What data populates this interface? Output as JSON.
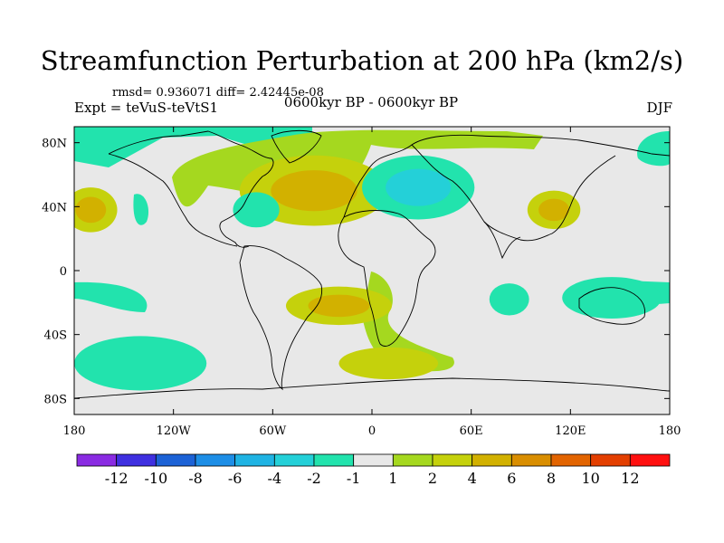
{
  "chart_data": {
    "type": "contour-map",
    "title": "Streamfunction Perturbation at 200 hPa (km2/s)",
    "stats_line": "rmsd= 0.936071 diff= 2.42445e-08",
    "experiment": "Expt = teVuS-teVtS1",
    "period": "0600kyr BP - 0600kyr BP",
    "season": "DJF",
    "projection": "cylindrical-equidistant",
    "x_range": [
      -180,
      180
    ],
    "y_range": [
      -90,
      90
    ],
    "x_ticks": [
      {
        "value": -180,
        "label": "180"
      },
      {
        "value": -120,
        "label": "120W"
      },
      {
        "value": -60,
        "label": "60W"
      },
      {
        "value": 0,
        "label": "0"
      },
      {
        "value": 60,
        "label": "60E"
      },
      {
        "value": 120,
        "label": "120E"
      },
      {
        "value": 180,
        "label": "180"
      }
    ],
    "y_ticks": [
      {
        "value": 80,
        "label": "80N"
      },
      {
        "value": 40,
        "label": "40N"
      },
      {
        "value": 0,
        "label": "0"
      },
      {
        "value": -40,
        "label": "40S"
      },
      {
        "value": -80,
        "label": "80S"
      }
    ],
    "colorbar": {
      "colors": [
        "#8a2be2",
        "#3f30e0",
        "#1c62d6",
        "#1d8ee6",
        "#1fb3e3",
        "#24d0d8",
        "#22e3ad",
        "#e8e8e8",
        "#a5d81f",
        "#c5d10c",
        "#d2b100",
        "#d98e00",
        "#e26400",
        "#e33f00",
        "#ff1010"
      ],
      "labels": [
        "-12",
        "-10",
        "-8",
        "-6",
        "-4",
        "-2",
        "-1",
        "1",
        "2",
        "4",
        "6",
        "8",
        "10",
        "12"
      ]
    },
    "features": [
      {
        "name": "north-pacific-high",
        "lon": -170,
        "lat": 38,
        "rx": 16,
        "ry": 14,
        "levels": [
          2,
          4
        ]
      },
      {
        "name": "north-atlantic-high",
        "lon": -35,
        "lat": 50,
        "rx": 45,
        "ry": 22,
        "levels": [
          2,
          4
        ]
      },
      {
        "name": "east-asia-high",
        "lon": 110,
        "lat": 38,
        "rx": 16,
        "ry": 12,
        "levels": [
          2,
          4
        ]
      },
      {
        "name": "europe-low",
        "lon": 28,
        "lat": 52,
        "rx": 34,
        "ry": 20,
        "levels": [
          -1,
          -2
        ]
      },
      {
        "name": "north-america-low",
        "lon": -70,
        "lat": 38,
        "rx": 14,
        "ry": 11,
        "levels": [
          -1
        ]
      },
      {
        "name": "south-atlantic-high",
        "lon": -20,
        "lat": -22,
        "rx": 32,
        "ry": 12,
        "levels": [
          2,
          4
        ]
      },
      {
        "name": "south-atlantic-tail",
        "lon": 10,
        "lat": -58,
        "rx": 30,
        "ry": 10,
        "levels": [
          2
        ]
      },
      {
        "name": "south-pacific-low",
        "lon": -140,
        "lat": -58,
        "rx": 40,
        "ry": 17,
        "levels": [
          -1
        ]
      },
      {
        "name": "indian-ocean-low",
        "lon": 83,
        "lat": -18,
        "rx": 12,
        "ry": 10,
        "levels": [
          -1
        ]
      },
      {
        "name": "australia-low",
        "lon": 145,
        "lat": -17,
        "rx": 30,
        "ry": 13,
        "levels": [
          -1
        ]
      }
    ]
  }
}
